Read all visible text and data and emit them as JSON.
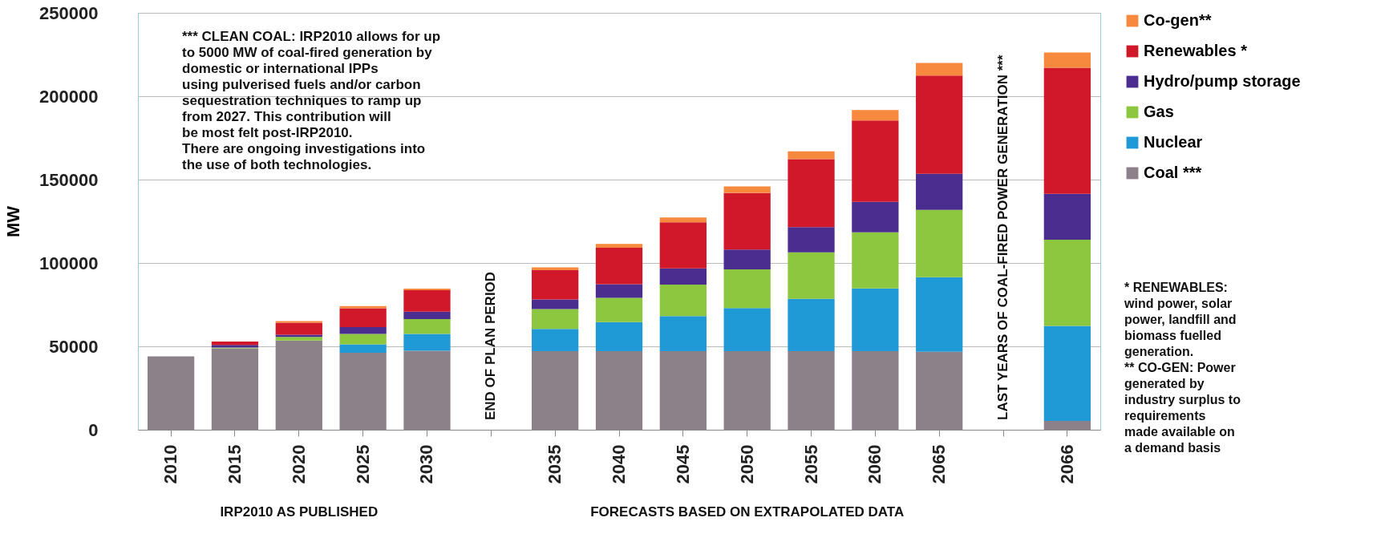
{
  "chart_data": {
    "type": "bar",
    "stacked": true,
    "ylabel": "MW",
    "categories": [
      "2010",
      "2015",
      "2020",
      "2025",
      "2030",
      null,
      "2035",
      "2040",
      "2045",
      "2050",
      "2055",
      "2060",
      "2065",
      null,
      "2066"
    ],
    "series": [
      {
        "name": "Coal ***",
        "color": "#8c8089",
        "values": [
          44000,
          48800,
          53500,
          46100,
          47300,
          null,
          47100,
          47100,
          47100,
          47100,
          47100,
          47100,
          46700,
          null,
          5300
        ]
      },
      {
        "name": "Nuclear",
        "color": "#1f9ad6",
        "values": [
          null,
          null,
          null,
          5100,
          10100,
          null,
          13400,
          17400,
          21100,
          25800,
          31400,
          37600,
          44800,
          null,
          56900
        ]
      },
      {
        "name": "Gas",
        "color": "#8dc63f",
        "values": [
          null,
          500,
          2100,
          6200,
          8900,
          null,
          11800,
          14600,
          18800,
          23200,
          27900,
          33700,
          40300,
          null,
          51800
        ]
      },
      {
        "name": "Hydro/pump storage",
        "color": "#4b2c8f",
        "values": [
          null,
          1500,
          1400,
          4100,
          4500,
          null,
          5800,
          8100,
          9700,
          12000,
          15100,
          18200,
          21700,
          null,
          27500
        ]
      },
      {
        "name": "Renewables *",
        "color": "#d0182a",
        "values": [
          null,
          2100,
          7200,
          11300,
          12900,
          null,
          17600,
          21900,
          27700,
          33900,
          40700,
          48900,
          58900,
          null,
          75600
        ]
      },
      {
        "name": "Co-gen**",
        "color": "#f7893e",
        "values": [
          null,
          null,
          1000,
          1300,
          900,
          null,
          1600,
          2300,
          2900,
          3900,
          4800,
          6200,
          7600,
          null,
          9100
        ]
      }
    ],
    "ylim": [
      0,
      250000
    ],
    "yticks": [
      0,
      50000,
      100000,
      150000,
      200000,
      250000
    ],
    "grid": "y",
    "legend": "right",
    "annotations": [
      "*** CLEAN COAL: IRP2010 allows for up\nto 5000 MW of coal-fired generation by\ndomestic or international IPPs\nusing pulverised fuels and/or carbon\nsequestration techniques to ramp up\nfrom 2027. This contribution will\nbe most felt post-IRP2010.\n   There are ongoing investigations into\nthe use of both technologies.",
      "END OF PLAN PERIOD",
      "LAST YEARS OF COAL-FIRED POWER GENERATION ***",
      "IRP2010 AS PUBLISHED",
      "FORECASTS BASED ON EXTRAPOLATED DATA",
      "* RENEWABLES:\nwind power,  solar\npower, landfill and\nbiomass fuelled\ngeneration.\n** CO-GEN: Power\ngenerated by\nindustry surplus to\nrequirements\nmade available on\na demand basis"
    ]
  }
}
